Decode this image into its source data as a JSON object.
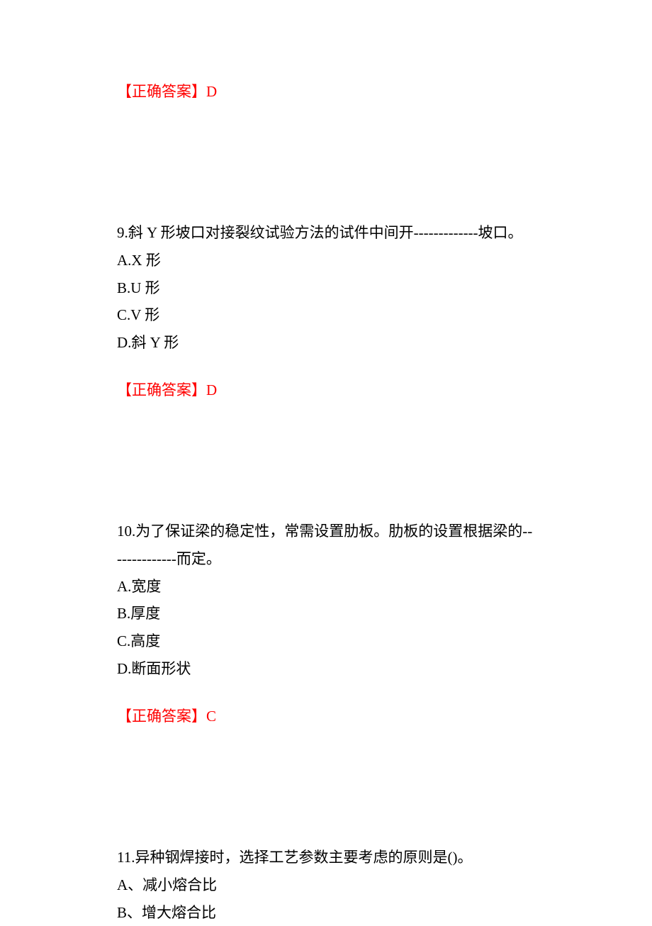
{
  "colors": {
    "answer_color": "#ff0000",
    "text_color": "#000000",
    "background_color": "#ffffff"
  },
  "typography": {
    "font_family": "SimSun",
    "font_size": 21,
    "line_height": 1.85
  },
  "answer1": {
    "label": "【正确答案】",
    "value": "D"
  },
  "question9": {
    "text": "9.斜 Y 形坡口对接裂纹试验方法的试件中间开-------------坡口。",
    "options": {
      "a": "A.X 形",
      "b": "B.U 形",
      "c": "C.V 形",
      "d": "D.斜 Y 形"
    },
    "answer": {
      "label": "【正确答案】",
      "value": "D"
    }
  },
  "question10": {
    "text": "10.为了保证梁的稳定性，常需设置肋板。肋板的设置根据梁的--------------而定。",
    "options": {
      "a": "A.宽度",
      "b": "B.厚度",
      "c": "C.高度",
      "d": "D.断面形状"
    },
    "answer": {
      "label": "【正确答案】",
      "value": "C"
    }
  },
  "question11": {
    "text": "11.异种钢焊接时，选择工艺参数主要考虑的原则是()。",
    "options": {
      "a": "A、减小熔合比",
      "b": "B、增大熔合比"
    }
  }
}
